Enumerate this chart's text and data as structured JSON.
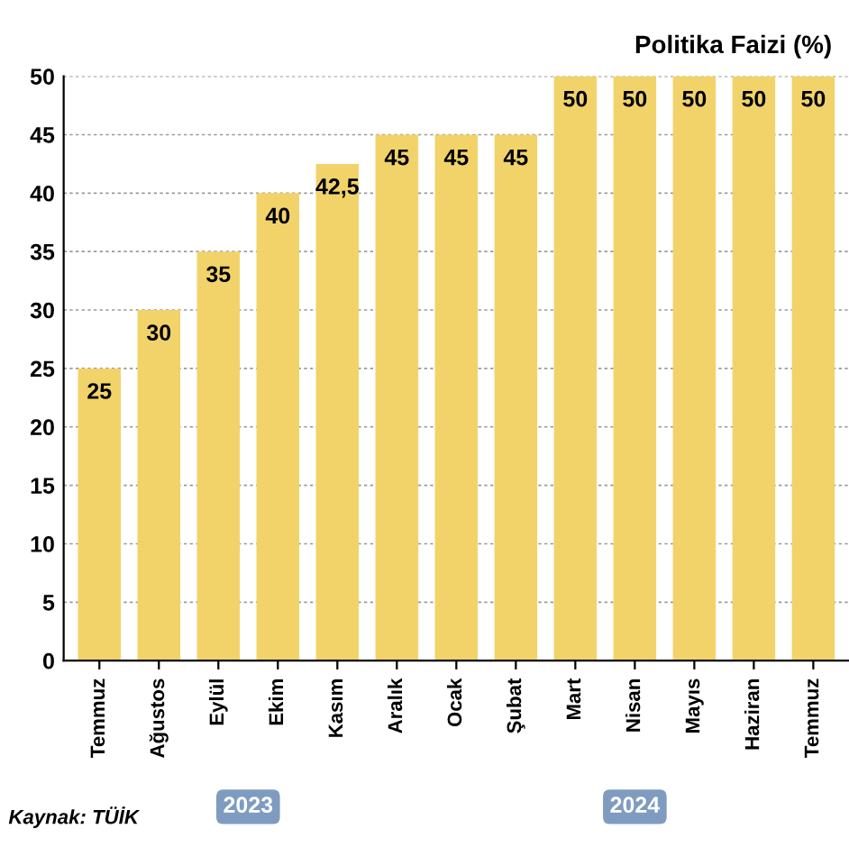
{
  "chart_data": {
    "type": "bar",
    "title": "Politika Faizi (%)",
    "categories": [
      "Temmuz",
      "Ağustos",
      "Eylül",
      "Ekim",
      "Kasım",
      "Aralık",
      "Ocak",
      "Şubat",
      "Mart",
      "Nisan",
      "Mayıs",
      "Haziran",
      "Temmuz"
    ],
    "values": [
      25,
      30,
      35,
      40,
      42.5,
      45,
      45,
      45,
      50,
      50,
      50,
      50,
      50
    ],
    "value_labels": [
      "25",
      "30",
      "35",
      "40",
      "42,5",
      "45",
      "45",
      "45",
      "50",
      "50",
      "50",
      "50",
      "50"
    ],
    "color": "#f2d36a",
    "ylim": [
      0,
      50
    ],
    "yticks": [
      0,
      5,
      10,
      15,
      20,
      25,
      30,
      35,
      40,
      45,
      50
    ],
    "grid": "y",
    "annotations": [
      "2023",
      "2024",
      "Kaynak: TÜİK"
    ]
  }
}
